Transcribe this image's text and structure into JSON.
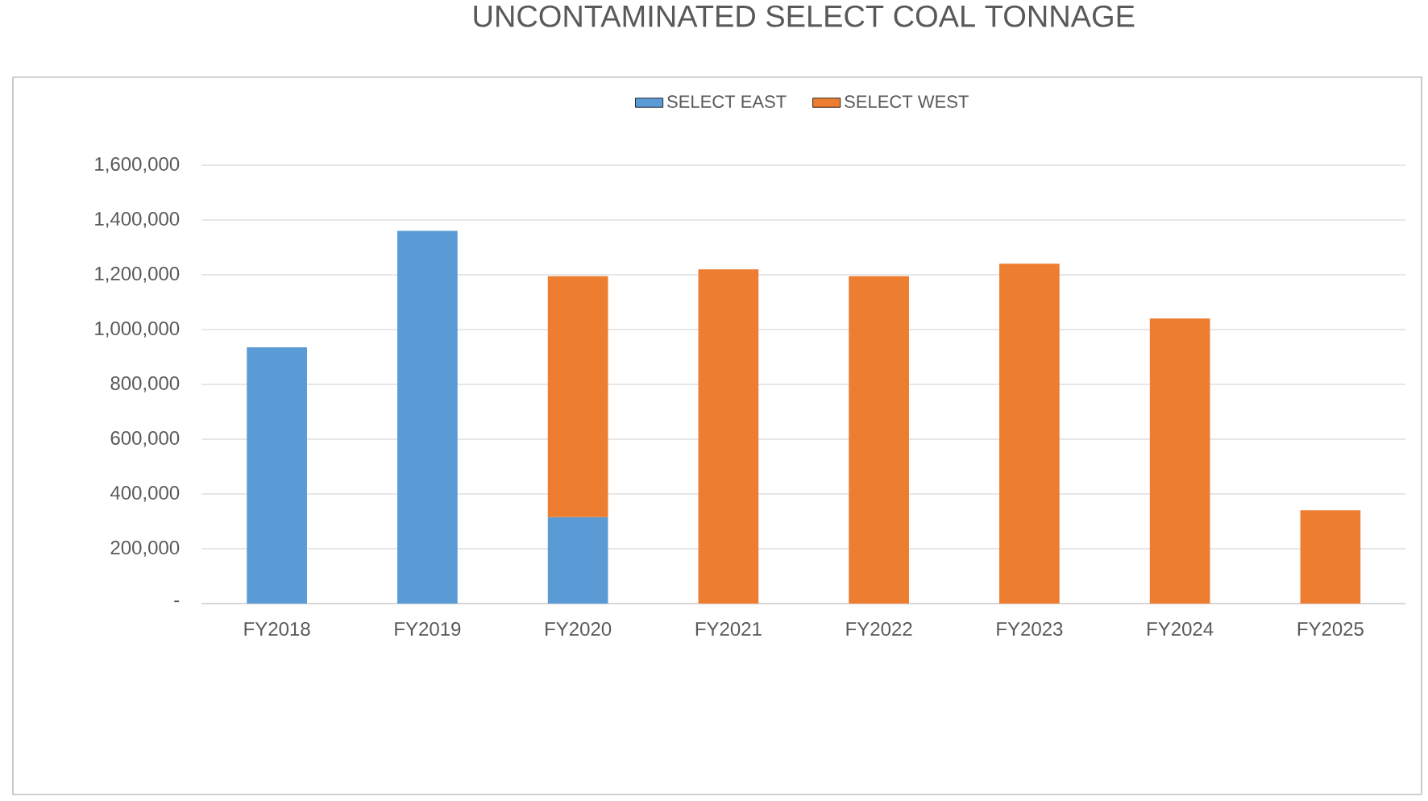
{
  "chart_data": {
    "type": "bar",
    "title": "UNCONTAMINATED SELECT  COAL TONNAGE",
    "stacked": true,
    "categories": [
      "FY2018",
      "FY2019",
      "FY2020",
      "FY2021",
      "FY2022",
      "FY2023",
      "FY2024",
      "FY2025"
    ],
    "series": [
      {
        "name": "SELECT EAST",
        "color": "#5b9bd5",
        "values": [
          935000,
          1360000,
          315000,
          null,
          null,
          null,
          null,
          null
        ]
      },
      {
        "name": "SELECT WEST",
        "color": "#ed7d31",
        "values": [
          null,
          null,
          880000,
          1220000,
          1195000,
          1240000,
          1040000,
          340000
        ]
      }
    ],
    "ylim": [
      0,
      1600000
    ],
    "yticks": [
      {
        "value": 0,
        "label": "-"
      },
      {
        "value": 200000,
        "label": "200,000"
      },
      {
        "value": 400000,
        "label": "400,000"
      },
      {
        "value": 600000,
        "label": "600,000"
      },
      {
        "value": 800000,
        "label": "800,000"
      },
      {
        "value": 1000000,
        "label": "1,000,000"
      },
      {
        "value": 1200000,
        "label": "1,200,000"
      },
      {
        "value": 1400000,
        "label": "1,400,000"
      },
      {
        "value": 1600000,
        "label": "1,600,000"
      }
    ],
    "grid": "y",
    "legend": "top"
  }
}
